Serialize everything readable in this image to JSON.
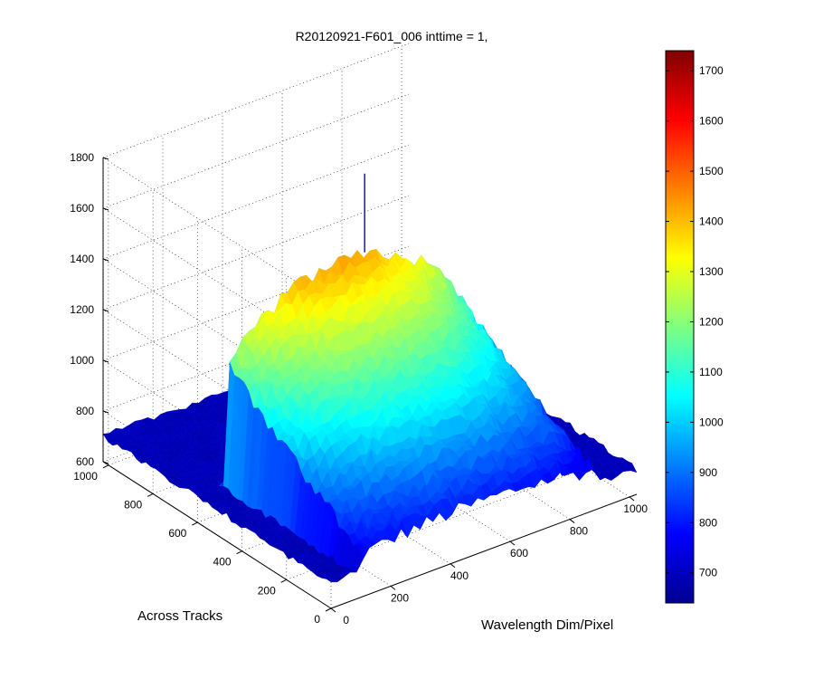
{
  "chart_data": {
    "type": "surface",
    "title": "R20120921-F601_006 inttime = 1,",
    "xlabel": "Wavelength Dim/Pixel",
    "ylabel": "Across Tracks",
    "zlabel": "",
    "x_ticks": [
      "0",
      "200",
      "400",
      "600",
      "800",
      "1000"
    ],
    "y_ticks": [
      "0",
      "200",
      "400",
      "600",
      "800",
      "1000"
    ],
    "z_ticks": [
      "600",
      "800",
      "1000",
      "1200",
      "1400",
      "1600",
      "1800"
    ],
    "xlim": [
      0,
      1024
    ],
    "ylim": [
      0,
      1024
    ],
    "zlim": [
      600,
      1800
    ],
    "grid": true,
    "colormap": "jet",
    "colorbar_ticks": [
      "700",
      "800",
      "900",
      "1000",
      "1100",
      "1200",
      "1300",
      "1400",
      "1500",
      "1600",
      "1700"
    ],
    "colorbar_range": [
      640,
      1740
    ],
    "surface": {
      "background_level": 700,
      "hump": {
        "across_track_range": [
          0,
          600
        ],
        "wavelength_range": [
          100,
          900
        ],
        "edge_level": 800,
        "peak_level": 1420,
        "peak_wavelength": 480
      },
      "spike": {
        "wavelength": 560,
        "across_track": 600,
        "value": 1730
      }
    }
  }
}
